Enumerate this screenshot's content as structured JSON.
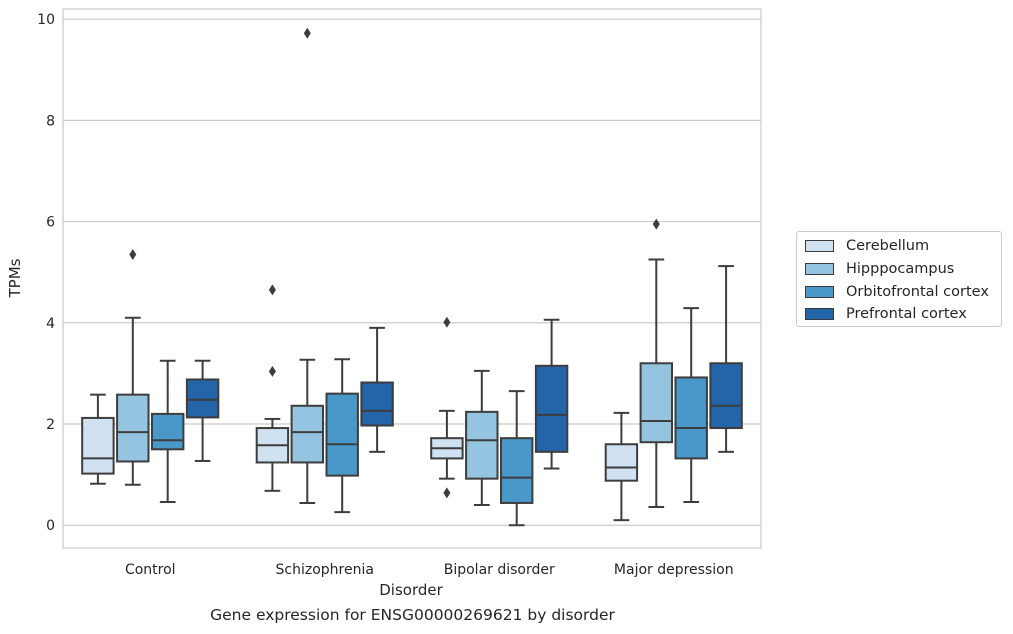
{
  "chart_data": {
    "type": "box",
    "title": "",
    "caption": "Gene expression for ENSG00000269621 by disorder",
    "xlabel": "Disorder",
    "ylabel": "TPMs",
    "ylim": [
      -0.45,
      10.2
    ],
    "yticks": [
      "0",
      "2",
      "4",
      "6",
      "8",
      "10"
    ],
    "grid": "horizontal",
    "legend_position": "right",
    "categories": [
      "Control",
      "Schizophrenia",
      "Bipolar disorder",
      "Major depression"
    ],
    "series": [
      {
        "name": "Cerebellum",
        "color": "#d0e1f2",
        "boxes": [
          {
            "whislo": 0.82,
            "q1": 1.02,
            "med": 1.32,
            "q3": 2.12,
            "whishi": 2.58,
            "fliers": []
          },
          {
            "whislo": 0.68,
            "q1": 1.24,
            "med": 1.58,
            "q3": 1.92,
            "whishi": 2.1,
            "fliers": [
              3.04,
              4.65
            ]
          },
          {
            "whislo": 0.92,
            "q1": 1.32,
            "med": 1.52,
            "q3": 1.72,
            "whishi": 2.26,
            "fliers": [
              0.64,
              4.01
            ]
          },
          {
            "whislo": 0.1,
            "q1": 0.88,
            "med": 1.14,
            "q3": 1.6,
            "whishi": 2.22,
            "fliers": []
          }
        ]
      },
      {
        "name": "Hipppocampus",
        "color": "#94c4df",
        "boxes": [
          {
            "whislo": 0.8,
            "q1": 1.26,
            "med": 1.84,
            "q3": 2.58,
            "whishi": 4.1,
            "fliers": [
              5.35
            ]
          },
          {
            "whislo": 0.44,
            "q1": 1.24,
            "med": 1.84,
            "q3": 2.36,
            "whishi": 3.27,
            "fliers": [
              9.72
            ]
          },
          {
            "whislo": 0.4,
            "q1": 0.92,
            "med": 1.68,
            "q3": 2.24,
            "whishi": 3.05,
            "fliers": []
          },
          {
            "whislo": 0.36,
            "q1": 1.64,
            "med": 2.06,
            "q3": 3.2,
            "whishi": 5.25,
            "fliers": [
              5.95
            ]
          }
        ]
      },
      {
        "name": "Orbitofrontal cortex",
        "color": "#4a98c9",
        "boxes": [
          {
            "whislo": 0.46,
            "q1": 1.5,
            "med": 1.68,
            "q3": 2.2,
            "whishi": 3.25,
            "fliers": []
          },
          {
            "whislo": 0.26,
            "q1": 0.98,
            "med": 1.6,
            "q3": 2.6,
            "whishi": 3.28,
            "fliers": []
          },
          {
            "whislo": 0.0,
            "q1": 0.44,
            "med": 0.94,
            "q3": 1.72,
            "whishi": 2.65,
            "fliers": []
          },
          {
            "whislo": 0.46,
            "q1": 1.32,
            "med": 1.92,
            "q3": 2.92,
            "whishi": 4.29,
            "fliers": []
          }
        ]
      },
      {
        "name": "Prefrontal cortex",
        "color": "#2365a8",
        "boxes": [
          {
            "whislo": 1.27,
            "q1": 2.13,
            "med": 2.48,
            "q3": 2.88,
            "whishi": 3.25,
            "fliers": []
          },
          {
            "whislo": 1.45,
            "q1": 1.97,
            "med": 2.26,
            "q3": 2.82,
            "whishi": 3.9,
            "fliers": []
          },
          {
            "whislo": 1.12,
            "q1": 1.45,
            "med": 2.18,
            "q3": 3.15,
            "whishi": 4.06,
            "fliers": []
          },
          {
            "whislo": 1.45,
            "q1": 1.92,
            "med": 2.36,
            "q3": 3.2,
            "whishi": 5.12,
            "fliers": []
          }
        ]
      }
    ]
  }
}
